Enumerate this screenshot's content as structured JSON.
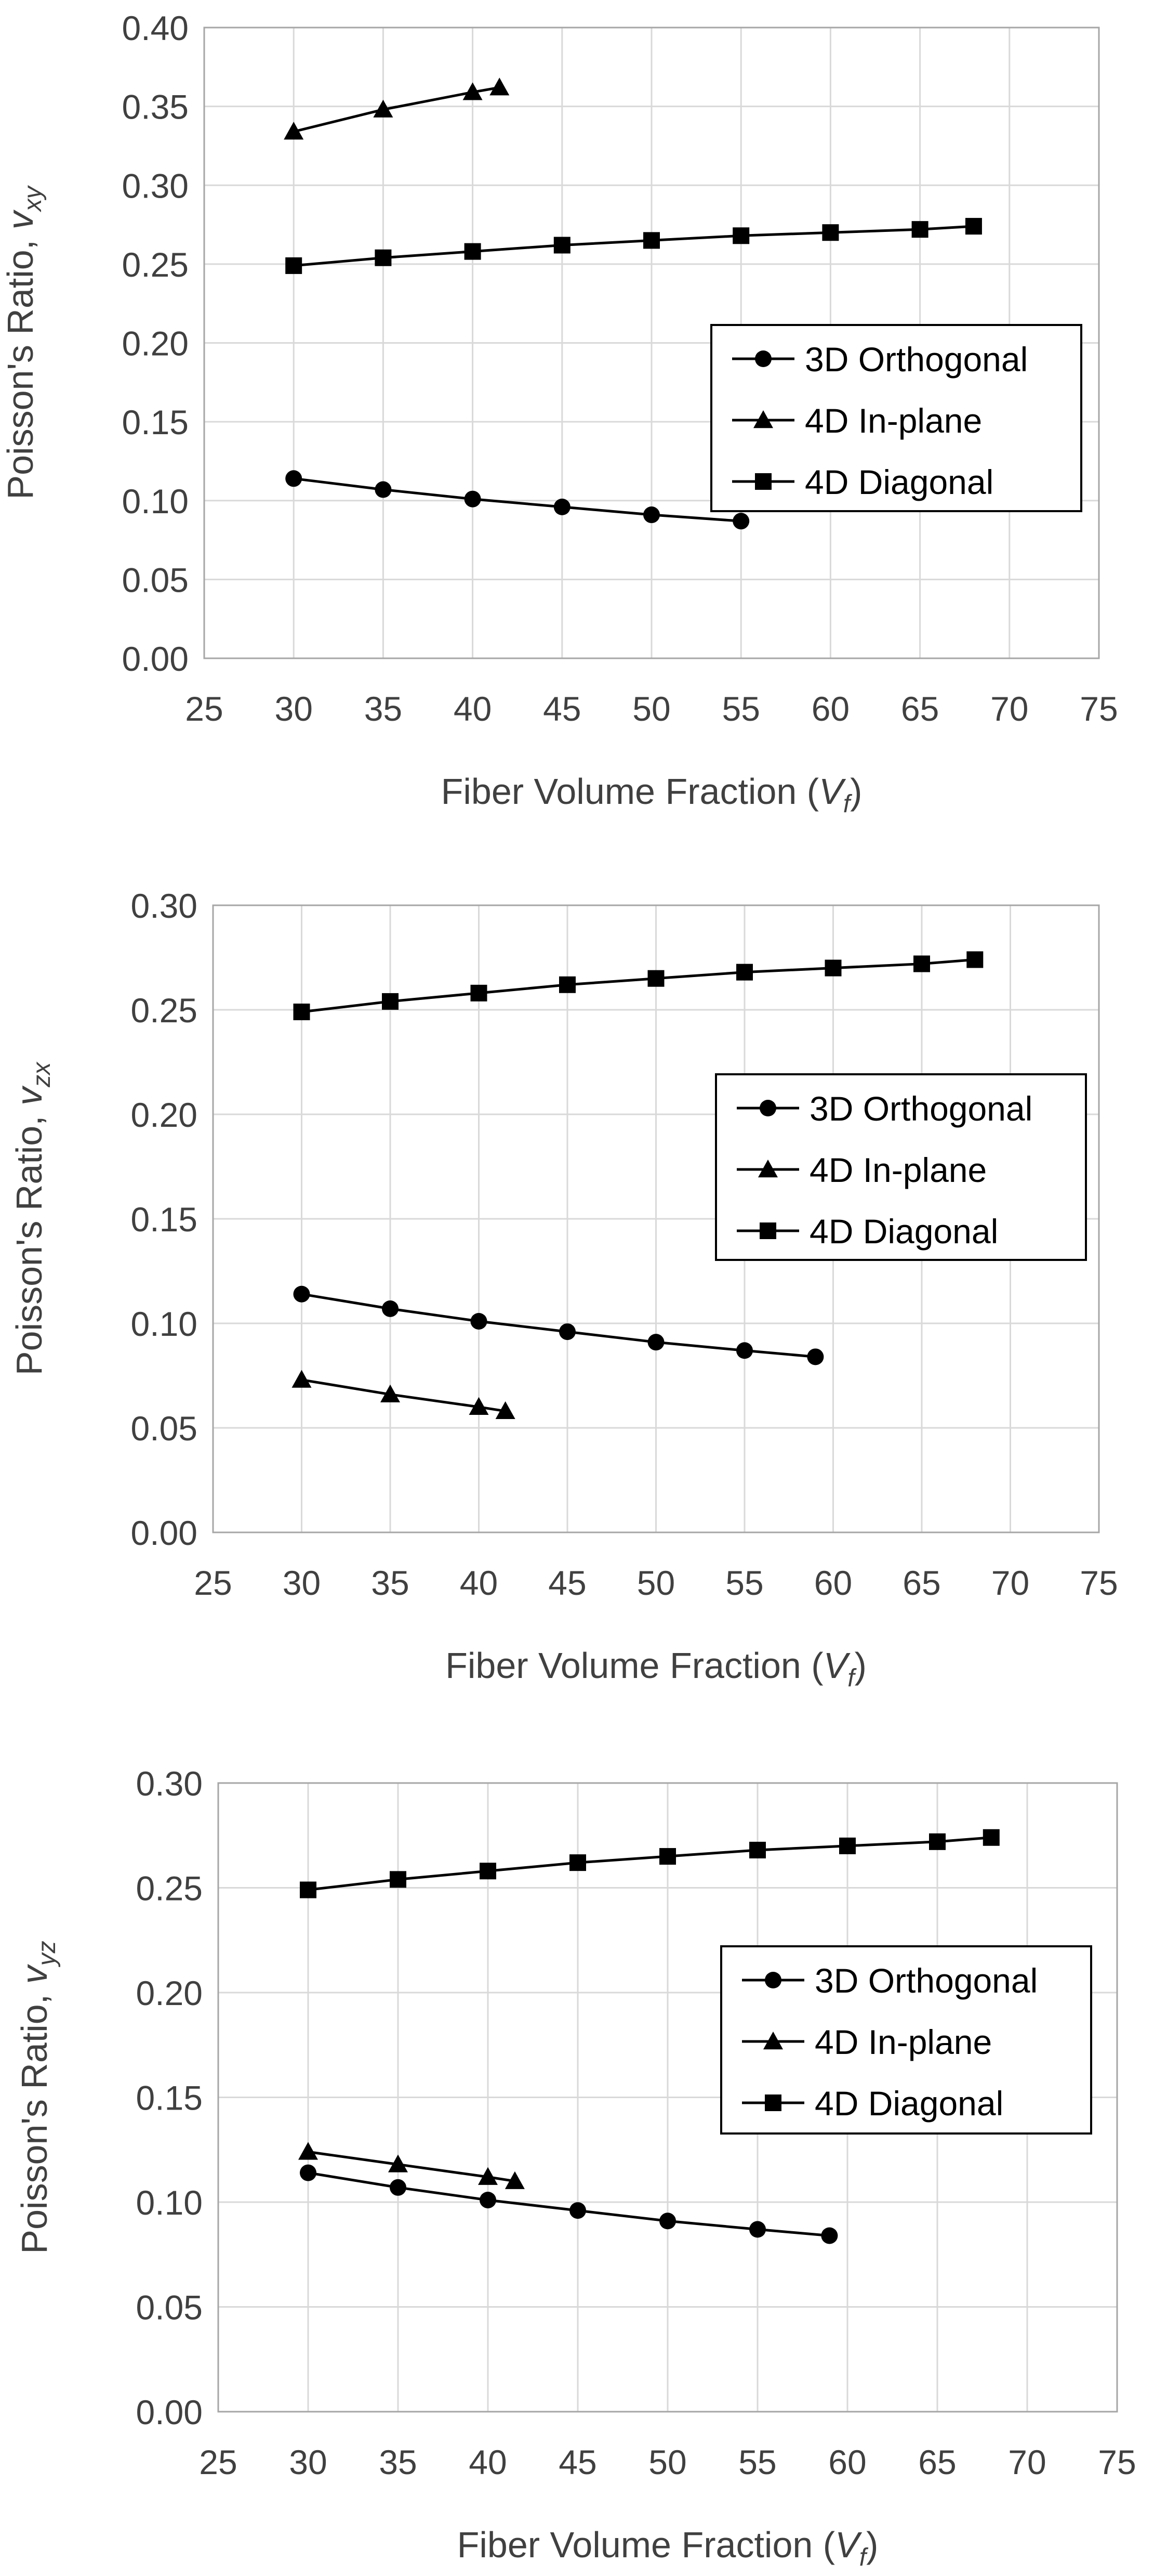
{
  "chart_data": [
    {
      "type": "line",
      "xlabel": "Fiber Volume Fraction (",
      "xlabel_var": "V",
      "xlabel_sub": "f",
      "xlabel_close": ")",
      "ylabel": "Poisson's Ratio, ",
      "ylabel_var": "v",
      "ylabel_sub": "xy",
      "xlim": [
        25,
        75
      ],
      "ylim": [
        0,
        0.4
      ],
      "xticks": [
        "25",
        "30",
        "35",
        "40",
        "45",
        "50",
        "55",
        "60",
        "65",
        "70",
        "75"
      ],
      "yticks": [
        "0.00",
        "0.05",
        "0.10",
        "0.15",
        "0.20",
        "0.25",
        "0.30",
        "0.35",
        "0.40"
      ],
      "grid": true,
      "legend_position": "right",
      "series": [
        {
          "name": "3D Orthogonal",
          "marker": "circle",
          "x": [
            30,
            35,
            40,
            45,
            50,
            55
          ],
          "values": [
            0.114,
            0.107,
            0.101,
            0.096,
            0.091,
            0.087
          ]
        },
        {
          "name": "4D In-plane",
          "marker": "triangle",
          "x": [
            30,
            35,
            40,
            41.5
          ],
          "values": [
            0.334,
            0.348,
            0.359,
            0.362
          ]
        },
        {
          "name": "4D Diagonal",
          "marker": "square",
          "x": [
            30,
            35,
            40,
            45,
            50,
            55,
            60,
            65,
            68
          ],
          "values": [
            0.249,
            0.254,
            0.258,
            0.262,
            0.265,
            0.268,
            0.27,
            0.272,
            0.274
          ]
        }
      ]
    },
    {
      "type": "line",
      "xlabel": "Fiber Volume Fraction (",
      "xlabel_var": "V",
      "xlabel_sub": "f",
      "xlabel_close": ")",
      "ylabel": "Poisson's Ratio, ",
      "ylabel_var": "v",
      "ylabel_sub": "zx",
      "xlim": [
        25,
        75
      ],
      "ylim": [
        0,
        0.3
      ],
      "xticks": [
        "25",
        "30",
        "35",
        "40",
        "45",
        "50",
        "55",
        "60",
        "65",
        "70",
        "75"
      ],
      "yticks": [
        "0.00",
        "0.05",
        "0.10",
        "0.15",
        "0.20",
        "0.25",
        "0.30"
      ],
      "grid": true,
      "legend_position": "right",
      "series": [
        {
          "name": "3D Orthogonal",
          "marker": "circle",
          "x": [
            30,
            35,
            40,
            45,
            50,
            55,
            59
          ],
          "values": [
            0.114,
            0.107,
            0.101,
            0.096,
            0.091,
            0.087,
            0.084
          ]
        },
        {
          "name": "4D In-plane",
          "marker": "triangle",
          "x": [
            30,
            35,
            40,
            41.5
          ],
          "values": [
            0.073,
            0.066,
            0.06,
            0.058
          ]
        },
        {
          "name": "4D Diagonal",
          "marker": "square",
          "x": [
            30,
            35,
            40,
            45,
            50,
            55,
            60,
            65,
            68
          ],
          "values": [
            0.249,
            0.254,
            0.258,
            0.262,
            0.265,
            0.268,
            0.27,
            0.272,
            0.274
          ]
        }
      ]
    },
    {
      "type": "line",
      "xlabel": "Fiber Volume Fraction (",
      "xlabel_var": "V",
      "xlabel_sub": "f",
      "xlabel_close": ")",
      "ylabel": "Poisson's Ratio, ",
      "ylabel_var": "v",
      "ylabel_sub": "yz",
      "xlim": [
        25,
        75
      ],
      "ylim": [
        0,
        0.3
      ],
      "xticks": [
        "25",
        "30",
        "35",
        "40",
        "45",
        "50",
        "55",
        "60",
        "65",
        "70",
        "75"
      ],
      "yticks": [
        "0.00",
        "0.05",
        "0.10",
        "0.15",
        "0.20",
        "0.25",
        "0.30"
      ],
      "grid": true,
      "legend_position": "right",
      "series": [
        {
          "name": "3D Orthogonal",
          "marker": "circle",
          "x": [
            30,
            35,
            40,
            45,
            50,
            55,
            59
          ],
          "values": [
            0.114,
            0.107,
            0.101,
            0.096,
            0.091,
            0.087,
            0.084
          ]
        },
        {
          "name": "4D In-plane",
          "marker": "triangle",
          "x": [
            30,
            35,
            40,
            41.5
          ],
          "values": [
            0.124,
            0.118,
            0.112,
            0.11
          ]
        },
        {
          "name": "4D Diagonal",
          "marker": "square",
          "x": [
            30,
            35,
            40,
            45,
            50,
            55,
            60,
            65,
            68
          ],
          "values": [
            0.249,
            0.254,
            0.258,
            0.262,
            0.265,
            0.268,
            0.27,
            0.272,
            0.274
          ]
        }
      ]
    }
  ]
}
